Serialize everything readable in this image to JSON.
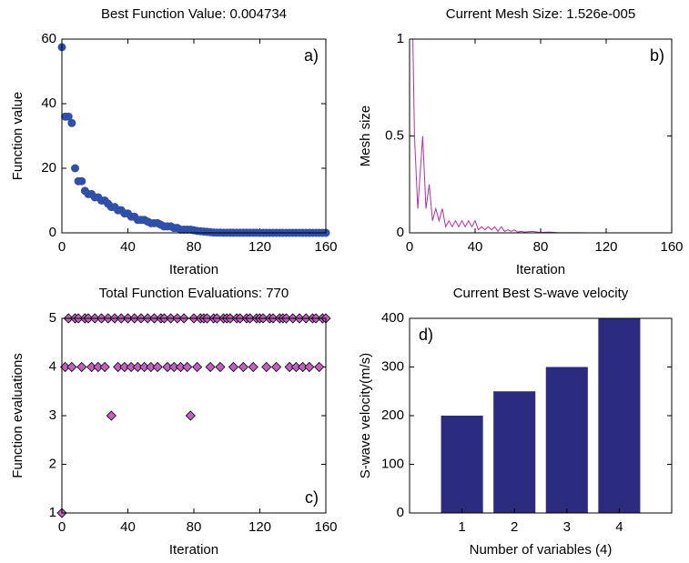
{
  "chart_data": [
    {
      "type": "scatter",
      "title": "Best Function Value: 0.004734",
      "panel_label": "a)",
      "x_label": "Iteration",
      "y_label": "Function value",
      "marker": "circle",
      "color": "#3050a8",
      "x": [
        0,
        2,
        4,
        6,
        8,
        10,
        12,
        14,
        16,
        18,
        20,
        22,
        24,
        26,
        28,
        30,
        32,
        34,
        36,
        38,
        40,
        42,
        44,
        46,
        48,
        50,
        52,
        54,
        56,
        58,
        60,
        62,
        64,
        66,
        68,
        70,
        72,
        74,
        76,
        78,
        80,
        82,
        84,
        86,
        88,
        90,
        92,
        94,
        96,
        98,
        100,
        102,
        104,
        106,
        108,
        110,
        112,
        114,
        116,
        118,
        120,
        122,
        124,
        126,
        128,
        130,
        132,
        134,
        136,
        138,
        140,
        142,
        144,
        146,
        148,
        150,
        152,
        154,
        156,
        158,
        160
      ],
      "values": [
        57.5,
        36,
        36,
        34,
        20,
        16,
        16,
        13,
        12,
        12,
        11,
        11,
        10,
        10,
        9,
        8,
        8,
        7,
        7,
        6,
        6,
        5,
        5,
        4,
        4,
        4,
        3.5,
        3,
        3,
        3,
        2.5,
        2,
        2,
        2,
        1.5,
        1.5,
        1,
        1,
        1,
        1,
        0.8,
        0.6,
        0.5,
        0.4,
        0.3,
        0.2,
        0.1,
        0.08,
        0.06,
        0.05,
        0.04,
        0.04,
        0.03,
        0.03,
        0.03,
        0.02,
        0.02,
        0.02,
        0.02,
        0.02,
        0.015,
        0.015,
        0.015,
        0.015,
        0.015,
        0.015,
        0.015,
        0.015,
        0.015,
        0.015,
        0.01,
        0.01,
        0.01,
        0.01,
        0.01,
        0.01,
        0.01,
        0.01,
        0.01,
        0.01,
        0.004734
      ],
      "xlim": [
        0,
        160
      ],
      "xticks": [
        0,
        40,
        80,
        120,
        160
      ],
      "ylim": [
        0,
        60
      ],
      "yticks": [
        0,
        20,
        40,
        60
      ]
    },
    {
      "type": "line",
      "title": "Current Mesh Size: 1.526e-005",
      "panel_label": "b)",
      "x_label": "Iteration",
      "y_label": "Mesh size",
      "color": "#b030a0",
      "x": [
        0,
        2,
        3,
        5,
        8,
        10,
        12,
        14,
        16,
        18,
        20,
        22,
        24,
        26,
        28,
        30,
        32,
        34,
        36,
        38,
        40,
        42,
        44,
        46,
        48,
        50,
        52,
        54,
        56,
        58,
        60,
        62,
        64,
        66,
        68,
        70,
        75,
        80,
        85,
        90,
        100,
        110,
        120,
        130,
        140,
        150,
        160
      ],
      "values": [
        1,
        1,
        0.5,
        0.125,
        0.5,
        0.125,
        0.25,
        0.0625,
        0.125,
        0.0625,
        0.125,
        0.03125,
        0.0625,
        0.03125,
        0.0625,
        0.03125,
        0.0625,
        0.03125,
        0.0625,
        0.03125,
        0.0625,
        0.015625,
        0.03125,
        0.015625,
        0.03125,
        0.015625,
        0.03125,
        0.0078,
        0.03125,
        0.0078,
        0.0156,
        0.0078,
        0.0156,
        0.0039,
        0.0078,
        0.0039,
        0.0078,
        0.002,
        0.0039,
        0.001,
        0.0005,
        0.0002,
        0.0001,
        5e-05,
        3e-05,
        2e-05,
        1.526e-05
      ],
      "xlim": [
        0,
        160
      ],
      "xticks": [
        0,
        40,
        80,
        120,
        160
      ],
      "ylim": [
        0,
        1
      ],
      "yticks": [
        0,
        0.5,
        1
      ]
    },
    {
      "type": "scatter",
      "title": "Total Function Evaluations: 770",
      "panel_label": "c)",
      "x_label": "Iteration",
      "y_label": "Function evaluations",
      "marker": "diamond",
      "color": "#c060c0",
      "x": [
        0,
        2,
        4,
        6,
        8,
        10,
        12,
        14,
        16,
        18,
        20,
        22,
        24,
        26,
        28,
        30,
        32,
        34,
        36,
        38,
        40,
        42,
        44,
        46,
        48,
        50,
        52,
        54,
        56,
        58,
        60,
        62,
        64,
        66,
        68,
        70,
        72,
        74,
        76,
        78,
        80,
        82,
        84,
        86,
        88,
        90,
        92,
        94,
        96,
        98,
        100,
        102,
        104,
        106,
        108,
        110,
        112,
        114,
        116,
        118,
        120,
        122,
        124,
        126,
        128,
        130,
        132,
        134,
        136,
        138,
        140,
        142,
        144,
        146,
        148,
        150,
        152,
        154,
        156,
        158,
        160
      ],
      "values": [
        1,
        4,
        5,
        4,
        5,
        5,
        4,
        5,
        5,
        4,
        5,
        4,
        5,
        4,
        5,
        3,
        5,
        4,
        5,
        4,
        5,
        4,
        5,
        4,
        5,
        4,
        5,
        4,
        5,
        4,
        5,
        5,
        4,
        5,
        4,
        5,
        4,
        5,
        4,
        3,
        5,
        4,
        5,
        5,
        5,
        4,
        5,
        5,
        4,
        5,
        5,
        5,
        4,
        5,
        5,
        4,
        5,
        5,
        4,
        5,
        5,
        5,
        4,
        5,
        5,
        4,
        5,
        5,
        5,
        4,
        5,
        4,
        5,
        4,
        5,
        4,
        5,
        5,
        4,
        5,
        5
      ],
      "xlim": [
        0,
        160
      ],
      "xticks": [
        0,
        40,
        80,
        120,
        160
      ],
      "ylim": [
        1,
        5
      ],
      "yticks": [
        1,
        2,
        3,
        4,
        5
      ]
    },
    {
      "type": "bar",
      "title": "Current Best S-wave velocity",
      "panel_label": "d)",
      "x_label": "Number of variables (4)",
      "y_label": "S-wave velocity(m/s)",
      "color": "#2b2b7f",
      "categories": [
        "1",
        "2",
        "3",
        "4"
      ],
      "values": [
        200,
        250,
        300,
        400
      ],
      "ylim": [
        0,
        400
      ],
      "yticks": [
        0,
        100,
        200,
        300,
        400
      ]
    }
  ]
}
